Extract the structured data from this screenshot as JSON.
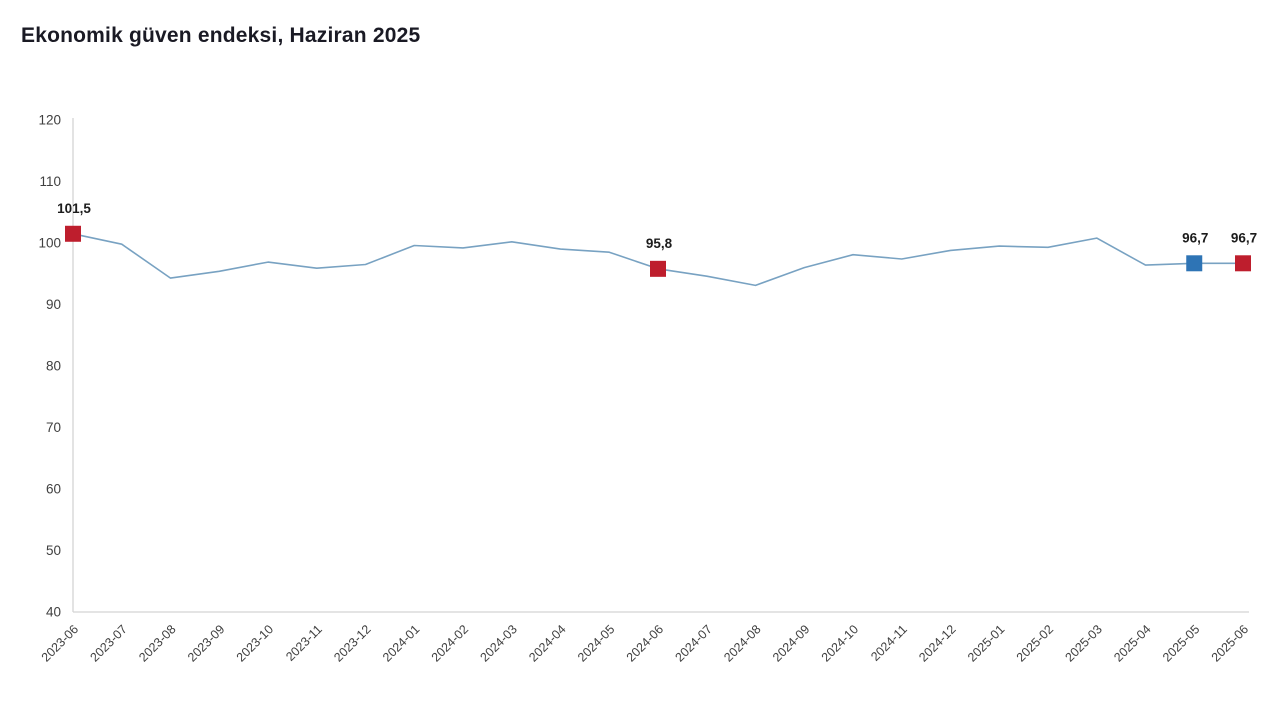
{
  "title": "Ekonomik güven endeksi, Haziran 2025",
  "chart_data": {
    "type": "line",
    "title": "Ekonomik güven endeksi, Haziran 2025",
    "categories": [
      "2023-06",
      "2023-07",
      "2023-08",
      "2023-09",
      "2023-10",
      "2023-11",
      "2023-12",
      "2024-01",
      "2024-02",
      "2024-03",
      "2024-04",
      "2024-05",
      "2024-06",
      "2024-07",
      "2024-08",
      "2024-09",
      "2024-10",
      "2024-11",
      "2024-12",
      "2025-01",
      "2025-02",
      "2025-03",
      "2025-04",
      "2025-05",
      "2025-06"
    ],
    "values": [
      101.5,
      99.8,
      94.3,
      95.4,
      96.9,
      95.9,
      96.5,
      99.6,
      99.2,
      100.2,
      99.0,
      98.5,
      95.8,
      94.6,
      93.1,
      96.0,
      98.1,
      97.4,
      98.8,
      99.5,
      99.3,
      100.8,
      96.4,
      96.7,
      96.7
    ],
    "ylim": [
      40,
      120
    ],
    "yticks": [
      120,
      110,
      100,
      90,
      80,
      70,
      60,
      50,
      40
    ],
    "grid": false,
    "legend": "none",
    "xlabel": "",
    "ylabel": "",
    "annotated_points": [
      {
        "category": "2023-06",
        "index": 0,
        "label": "101,5",
        "marker_color": "#be1e2d"
      },
      {
        "category": "2024-06",
        "index": 12,
        "label": "95,8",
        "marker_color": "#be1e2d"
      },
      {
        "category": "2025-05",
        "index": 23,
        "label": "96,7",
        "marker_color": "#2e74b5"
      },
      {
        "category": "2025-06",
        "index": 24,
        "label": "96,7",
        "marker_color": "#be1e2d"
      }
    ],
    "colors": {
      "line": "#78a2c2",
      "axis": "#d4d4d4",
      "tick_labels": "#404040",
      "annotation_labels": "#1c1c1c",
      "title": "#1a1a24",
      "background": "#ffffff"
    }
  }
}
